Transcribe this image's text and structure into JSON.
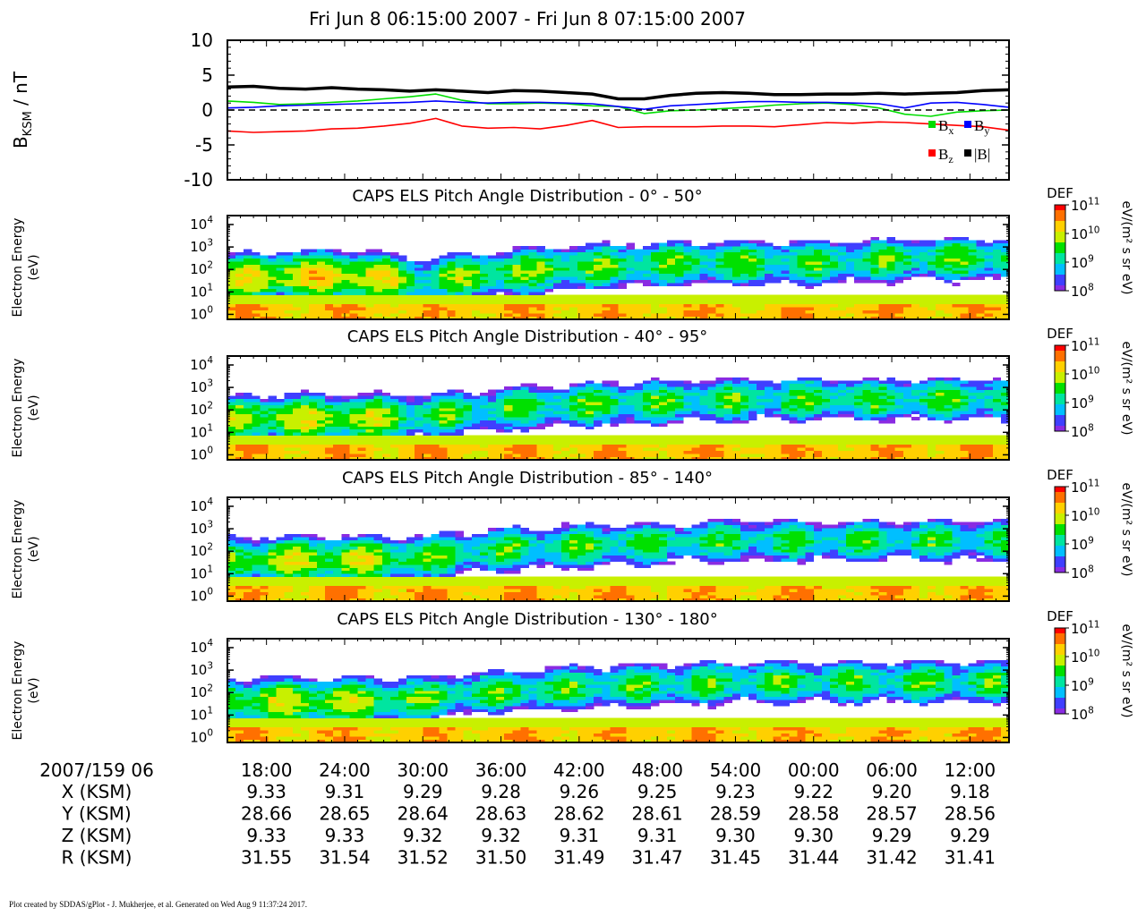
{
  "title": "Fri Jun 8 06:15:00 2007 - Fri Jun 8 07:15:00 2007",
  "footer": "Plot created by SDDAS/gPlot - J. Mukherjee, et al.  Generated on Wed Aug 9 11:37:24 2017.",
  "colors": {
    "Bx": "#00dd00",
    "By": "#0000ff",
    "Bz": "#ff0000",
    "Btot": "#000000",
    "colormap": [
      "#8a2be2",
      "#3f3fff",
      "#00bfff",
      "#00e5a0",
      "#00e000",
      "#c8f000",
      "#ffd000",
      "#ff7000",
      "#ff0000"
    ]
  },
  "chart_data": [
    {
      "type": "line",
      "ylabel_main": "B",
      "ylabel_sub": "KSM",
      "ylabel_unit": " / nT",
      "ylim": [
        -10,
        10
      ],
      "yticks": [
        10,
        5,
        0,
        -5,
        -10
      ],
      "zero_line": "dashed",
      "legend_position": "bottom-right",
      "x": [
        0,
        2,
        4,
        6,
        8,
        10,
        12,
        14,
        16,
        18,
        20,
        22,
        24,
        26,
        28,
        30,
        32,
        34,
        36,
        38,
        40,
        42,
        44,
        46,
        48,
        50,
        52,
        54,
        56,
        58,
        60
      ],
      "series": [
        {
          "key": "Bx",
          "name": "B",
          "name_sub": "x",
          "values": [
            1.3,
            1.1,
            0.8,
            0.9,
            1.1,
            1.3,
            1.6,
            1.9,
            2.3,
            1.4,
            0.9,
            0.9,
            1.0,
            0.9,
            0.6,
            0.5,
            -0.5,
            -0.1,
            0.0,
            0.2,
            0.4,
            0.7,
            0.9,
            1.0,
            0.8,
            0.3,
            -0.6,
            -0.9,
            -0.3,
            -0.1,
            0.0
          ]
        },
        {
          "key": "By",
          "name": "B",
          "name_sub": "y",
          "values": [
            0.3,
            0.4,
            0.6,
            0.7,
            0.8,
            0.9,
            1.0,
            1.1,
            1.3,
            1.1,
            1.0,
            1.1,
            1.1,
            1.0,
            0.9,
            0.5,
            0.1,
            0.6,
            0.8,
            1.0,
            1.2,
            1.2,
            1.1,
            1.1,
            1.0,
            0.9,
            0.3,
            1.0,
            1.1,
            0.8,
            0.4
          ]
        },
        {
          "key": "Bz",
          "name": "B",
          "name_sub": "z",
          "values": [
            -3.0,
            -3.2,
            -3.1,
            -3.0,
            -2.7,
            -2.6,
            -2.3,
            -1.9,
            -1.2,
            -2.3,
            -2.6,
            -2.5,
            -2.7,
            -2.2,
            -1.5,
            -2.5,
            -2.4,
            -2.4,
            -2.4,
            -2.3,
            -2.3,
            -2.4,
            -2.1,
            -1.8,
            -1.9,
            -1.7,
            -1.8,
            -2.0,
            -2.2,
            -2.4,
            -2.9
          ]
        },
        {
          "key": "Btot",
          "name": "|B|",
          "values": [
            3.3,
            3.4,
            3.1,
            3.0,
            3.2,
            3.0,
            2.9,
            2.7,
            2.9,
            2.7,
            2.5,
            2.8,
            2.7,
            2.5,
            2.3,
            1.6,
            1.6,
            2.1,
            2.4,
            2.5,
            2.4,
            2.2,
            2.2,
            2.3,
            2.3,
            2.4,
            2.3,
            2.4,
            2.5,
            2.8,
            2.9
          ]
        }
      ]
    },
    {
      "type": "heatmap",
      "title": "CAPS ELS Pitch Angle Distribution - 0° - 50°",
      "ylabel": [
        "Electron Energy",
        "(eV)"
      ],
      "y_scale": "log",
      "ylim": [
        0.6,
        25000
      ],
      "yticks": [
        {
          "base": "10",
          "exp": "4"
        },
        {
          "base": "10",
          "exp": "3"
        },
        {
          "base": "10",
          "exp": "2"
        },
        {
          "base": "10",
          "exp": "1"
        },
        {
          "base": "10",
          "exp": "0"
        }
      ],
      "colorbar": {
        "label": "DEF",
        "unit": "eV/(m² s sr eV)",
        "ticks": [
          {
            "base": "10",
            "exp": "11"
          },
          {
            "base": "10",
            "exp": "10"
          },
          {
            "base": "10",
            "exp": "9"
          },
          {
            "base": "10",
            "exp": "8"
          }
        ]
      },
      "x_minutes": [
        0,
        5,
        10,
        15,
        20,
        25,
        30,
        35,
        40,
        45,
        50,
        55,
        60
      ],
      "peak_energy_eV": [
        40,
        50,
        50,
        30,
        60,
        100,
        150,
        200,
        200,
        200,
        250,
        300,
        300
      ],
      "peak_log10_def": [
        9.8,
        10.0,
        10.1,
        9.4,
        9.6,
        9.5,
        9.4,
        9.4,
        9.4,
        9.3,
        9.3,
        9.4,
        9.4
      ]
    },
    {
      "type": "heatmap",
      "title": "CAPS ELS Pitch Angle Distribution - 40° - 95°",
      "ylabel": [
        "Electron Energy",
        "(eV)"
      ],
      "y_scale": "log",
      "ylim": [
        0.6,
        25000
      ],
      "yticks": [
        {
          "base": "10",
          "exp": "4"
        },
        {
          "base": "10",
          "exp": "3"
        },
        {
          "base": "10",
          "exp": "2"
        },
        {
          "base": "10",
          "exp": "1"
        },
        {
          "base": "10",
          "exp": "0"
        }
      ],
      "colorbar": {
        "label": "DEF",
        "unit": "eV/(m² s sr eV)",
        "ticks": [
          {
            "base": "10",
            "exp": "11"
          },
          {
            "base": "10",
            "exp": "10"
          },
          {
            "base": "10",
            "exp": "9"
          },
          {
            "base": "10",
            "exp": "8"
          }
        ]
      },
      "x_minutes": [
        0,
        5,
        10,
        15,
        20,
        25,
        30,
        35,
        40,
        45,
        50,
        55,
        60
      ],
      "peak_energy_eV": [
        40,
        40,
        40,
        50,
        100,
        150,
        200,
        250,
        300,
        300,
        300,
        300,
        300
      ],
      "peak_log10_def": [
        9.6,
        9.8,
        9.8,
        9.4,
        9.3,
        9.3,
        9.4,
        9.3,
        9.3,
        9.3,
        9.3,
        9.3,
        9.3
      ]
    },
    {
      "type": "heatmap",
      "title": "CAPS ELS Pitch Angle Distribution - 85° - 140°",
      "ylabel": [
        "Electron Energy",
        "(eV)"
      ],
      "y_scale": "log",
      "ylim": [
        0.6,
        25000
      ],
      "yticks": [
        {
          "base": "10",
          "exp": "4"
        },
        {
          "base": "10",
          "exp": "3"
        },
        {
          "base": "10",
          "exp": "2"
        },
        {
          "base": "10",
          "exp": "1"
        },
        {
          "base": "10",
          "exp": "0"
        }
      ],
      "colorbar": {
        "label": "DEF",
        "unit": "eV/(m² s sr eV)",
        "ticks": [
          {
            "base": "10",
            "exp": "11"
          },
          {
            "base": "10",
            "exp": "10"
          },
          {
            "base": "10",
            "exp": "9"
          },
          {
            "base": "10",
            "exp": "8"
          }
        ]
      },
      "x_minutes": [
        0,
        5,
        10,
        15,
        20,
        25,
        30,
        35,
        40,
        45,
        50,
        55,
        60
      ],
      "peak_energy_eV": [
        40,
        40,
        40,
        50,
        100,
        150,
        200,
        250,
        300,
        300,
        300,
        300,
        300
      ],
      "peak_log10_def": [
        9.5,
        9.8,
        9.8,
        9.4,
        9.3,
        9.3,
        9.3,
        9.2,
        9.2,
        9.2,
        9.2,
        9.2,
        9.2
      ]
    },
    {
      "type": "heatmap",
      "title": "CAPS ELS Pitch Angle Distribution - 130° - 180°",
      "ylabel": [
        "Electron Energy",
        "(eV)"
      ],
      "y_scale": "log",
      "ylim": [
        0.6,
        25000
      ],
      "yticks": [
        {
          "base": "10",
          "exp": "4"
        },
        {
          "base": "10",
          "exp": "3"
        },
        {
          "base": "10",
          "exp": "2"
        },
        {
          "base": "10",
          "exp": "1"
        },
        {
          "base": "10",
          "exp": "0"
        }
      ],
      "colorbar": {
        "label": "DEF",
        "unit": "eV/(m² s sr eV)",
        "ticks": [
          {
            "base": "10",
            "exp": "11"
          },
          {
            "base": "10",
            "exp": "10"
          },
          {
            "base": "10",
            "exp": "9"
          },
          {
            "base": "10",
            "exp": "8"
          }
        ]
      },
      "x_minutes": [
        0,
        5,
        10,
        15,
        20,
        25,
        30,
        35,
        40,
        45,
        50,
        55,
        60
      ],
      "peak_energy_eV": [
        40,
        40,
        40,
        50,
        100,
        150,
        200,
        250,
        300,
        300,
        300,
        300,
        300
      ],
      "peak_log10_def": [
        9.6,
        9.8,
        9.7,
        9.4,
        9.3,
        9.3,
        9.3,
        9.3,
        9.3,
        9.3,
        9.3,
        9.3,
        9.3
      ]
    }
  ],
  "time_axis": {
    "start_label": "2007/159 06",
    "tick_minutes": [
      3,
      9,
      15,
      21,
      27,
      33,
      39,
      45,
      51,
      57
    ],
    "ticks": [
      "18:00",
      "24:00",
      "30:00",
      "36:00",
      "42:00",
      "48:00",
      "54:00",
      "00:00",
      "06:00",
      "12:00"
    ],
    "rows": [
      {
        "label": "X (KSM)",
        "values": [
          "9.33",
          "9.31",
          "9.29",
          "9.28",
          "9.26",
          "9.25",
          "9.23",
          "9.22",
          "9.20",
          "9.18"
        ]
      },
      {
        "label": "Y (KSM)",
        "values": [
          "28.66",
          "28.65",
          "28.64",
          "28.63",
          "28.62",
          "28.61",
          "28.59",
          "28.58",
          "28.57",
          "28.56"
        ]
      },
      {
        "label": "Z (KSM)",
        "values": [
          "9.33",
          "9.33",
          "9.32",
          "9.32",
          "9.31",
          "9.31",
          "9.30",
          "9.30",
          "9.29",
          "9.29"
        ]
      },
      {
        "label": "R (KSM)",
        "values": [
          "31.55",
          "31.54",
          "31.52",
          "31.50",
          "31.49",
          "31.47",
          "31.45",
          "31.44",
          "31.42",
          "31.41"
        ]
      }
    ]
  }
}
